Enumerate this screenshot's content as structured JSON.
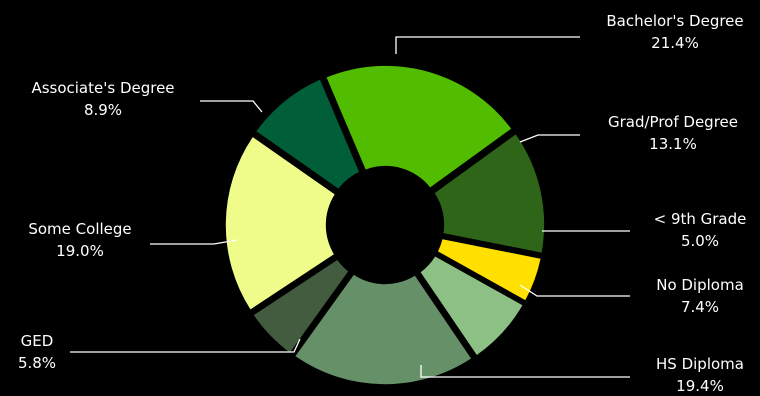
{
  "chart_data": {
    "type": "pie",
    "style": "donut",
    "background": "#000000",
    "slices": [
      {
        "label": "Bachelor's Degree",
        "value": 21.4,
        "value_label": "21.4%",
        "color": "#52bd00"
      },
      {
        "label": "Grad/Prof Degree",
        "value": 13.1,
        "value_label": "13.1%",
        "color": "#2e6518"
      },
      {
        "label": "< 9th Grade",
        "value": 5.0,
        "value_label": "5.0%",
        "color": "#ffe000"
      },
      {
        "label": "No Diploma",
        "value": 7.4,
        "value_label": "7.4%",
        "color": "#8cc084"
      },
      {
        "label": "HS Diploma",
        "value": 19.4,
        "value_label": "19.4%",
        "color": "#669168"
      },
      {
        "label": "GED",
        "value": 5.8,
        "value_label": "5.8%",
        "color": "#435c40"
      },
      {
        "label": "Some College",
        "value": 19.0,
        "value_label": "19.0%",
        "color": "#f0fc8a"
      },
      {
        "label": "Associate's Degree",
        "value": 8.9,
        "value_label": "8.9%",
        "color": "#005e38"
      }
    ]
  }
}
